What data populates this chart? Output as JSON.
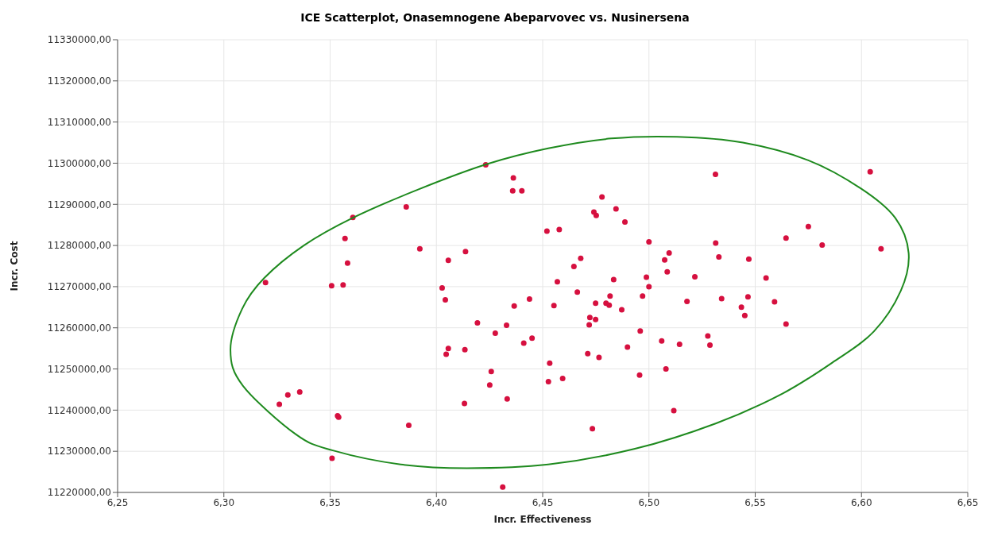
{
  "chart_data": {
    "type": "scatter",
    "title": "ICE Scatterplot, Onasemnogene Abeparvovec vs. Nusinersena",
    "xlabel": "Incr. Effectiveness",
    "ylabel": "Incr. Cost",
    "xlim": [
      6.25,
      6.65
    ],
    "ylim": [
      11220000,
      11330000
    ],
    "xticks": [
      {
        "value": 6.25,
        "label": "6,25"
      },
      {
        "value": 6.3,
        "label": "6,30"
      },
      {
        "value": 6.35,
        "label": "6,35"
      },
      {
        "value": 6.4,
        "label": "6,40"
      },
      {
        "value": 6.45,
        "label": "6,45"
      },
      {
        "value": 6.5,
        "label": "6,50"
      },
      {
        "value": 6.55,
        "label": "6,55"
      },
      {
        "value": 6.6,
        "label": "6,60"
      },
      {
        "value": 6.65,
        "label": "6,65"
      }
    ],
    "yticks": [
      {
        "value": 11220000,
        "label": "11220000,00"
      },
      {
        "value": 11230000,
        "label": "11230000,00"
      },
      {
        "value": 11240000,
        "label": "11240000,00"
      },
      {
        "value": 11250000,
        "label": "11250000,00"
      },
      {
        "value": 11260000,
        "label": "11260000,00"
      },
      {
        "value": 11270000,
        "label": "11270000,00"
      },
      {
        "value": 11280000,
        "label": "11280000,00"
      },
      {
        "value": 11290000,
        "label": "11290000,00"
      },
      {
        "value": 11300000,
        "label": "11300000,00"
      },
      {
        "value": 11310000,
        "label": "11310000,00"
      },
      {
        "value": 11320000,
        "label": "11320000,00"
      },
      {
        "value": 11330000,
        "label": "11330000,00"
      }
    ],
    "grid": true,
    "marker": "circle",
    "series": [
      {
        "type": "scatter",
        "color": "#d6103f",
        "x": [
          6.4232,
          6.4362,
          6.4359,
          6.4402,
          6.3858,
          6.3607,
          6.452,
          6.357,
          6.3922,
          6.4137,
          6.4056,
          6.3582,
          6.3196,
          6.3507,
          6.3561,
          6.4027,
          6.4042,
          6.4438,
          6.4366,
          6.4193,
          6.433,
          6.4277,
          6.445,
          6.4411,
          6.4056,
          6.4046,
          6.4134,
          6.4258,
          6.4251,
          6.4333,
          6.4132,
          6.3357,
          6.3301,
          6.3261,
          6.3535,
          6.354,
          6.387,
          6.3509,
          6.4312,
          6.5313,
          6.6041,
          6.4779,
          6.4741,
          6.4752,
          6.4845,
          6.4887,
          6.4578,
          6.575,
          6.5645,
          6.5815,
          6.6092,
          6.5,
          6.5314,
          6.5095,
          6.5074,
          6.5329,
          6.547,
          6.4679,
          6.4647,
          6.5086,
          6.5216,
          6.5551,
          6.4988,
          6.5,
          6.4569,
          6.4834,
          6.4663,
          6.497,
          6.4817,
          6.4749,
          6.4798,
          6.4813,
          6.5179,
          6.5342,
          6.5466,
          6.5591,
          6.5435,
          6.5451,
          6.4872,
          6.4553,
          6.4722,
          6.4749,
          6.4719,
          6.4959,
          6.506,
          6.5144,
          6.5277,
          6.5287,
          6.5645,
          6.4899,
          6.4712,
          6.4765,
          6.4533,
          6.4527,
          6.4594,
          6.508,
          6.4956,
          6.5117,
          6.4734
        ],
        "values": [
          11299600,
          11296400,
          11293300,
          11293300,
          11289400,
          11286800,
          11283500,
          11281700,
          11279200,
          11278500,
          11276400,
          11275700,
          11271000,
          11270200,
          11270400,
          11269700,
          11266800,
          11267000,
          11265300,
          11261200,
          11260600,
          11258700,
          11257500,
          11256300,
          11255000,
          11253600,
          11254700,
          11249400,
          11246100,
          11242700,
          11241600,
          11244400,
          11243700,
          11241400,
          11238600,
          11238300,
          11236300,
          11228300,
          11221300,
          11297300,
          11297900,
          11291800,
          11288100,
          11287300,
          11288900,
          11285700,
          11283900,
          11284600,
          11281800,
          11280100,
          11279200,
          11280900,
          11280600,
          11278200,
          11276500,
          11277200,
          11276700,
          11276900,
          11274900,
          11273600,
          11272400,
          11272100,
          11272300,
          11270000,
          11271200,
          11271700,
          11268700,
          11267700,
          11267700,
          11266000,
          11266000,
          11265500,
          11266400,
          11267100,
          11267500,
          11266300,
          11265000,
          11263000,
          11264400,
          11265400,
          11262500,
          11262000,
          11260700,
          11259200,
          11256800,
          11256000,
          11258000,
          11255800,
          11260900,
          11255300,
          11253700,
          11252800,
          11251400,
          11246900,
          11247700,
          11250000,
          11248500,
          11239900,
          11235500
        ]
      }
    ]
  }
}
